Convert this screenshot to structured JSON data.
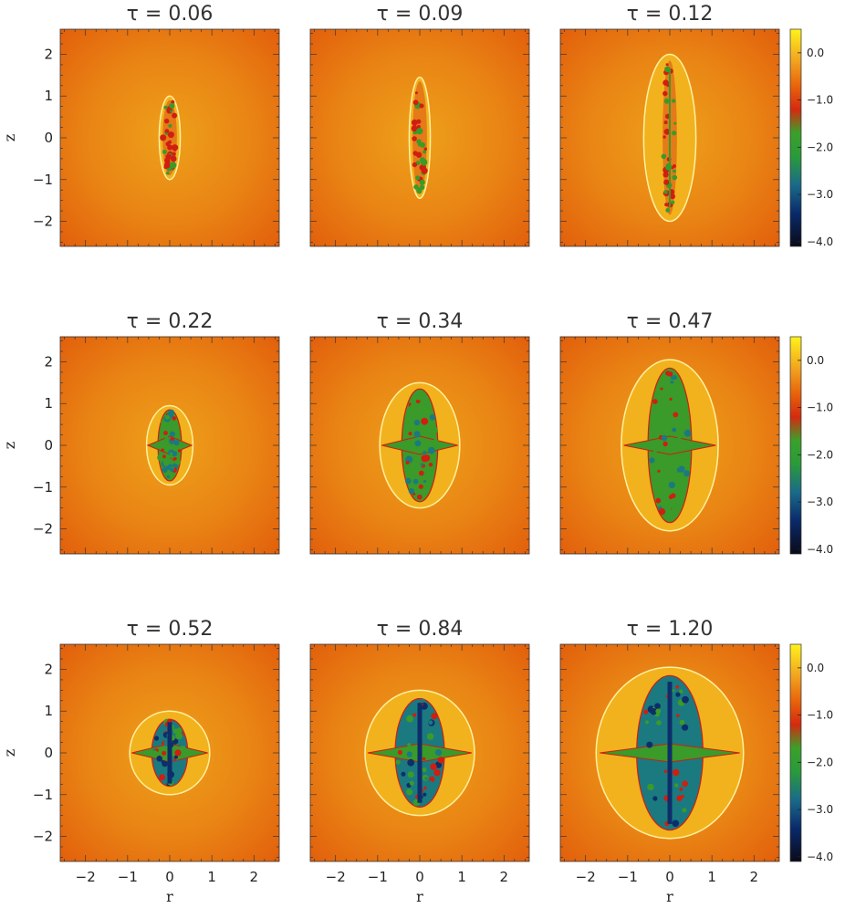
{
  "panels": [
    {
      "title": "τ = 0.06",
      "tau": 0.06,
      "boundary_halfwidth": 0.25,
      "boundary_halfheight": 1.0,
      "core_halfheight": 0.9,
      "stage": "filaments",
      "y_axis_label": "z",
      "x_axis_label": ""
    },
    {
      "title": "τ = 0.09",
      "tau": 0.09,
      "boundary_halfwidth": 0.25,
      "boundary_halfheight": 1.45,
      "core_halfheight": 1.35,
      "stage": "filaments",
      "y_axis_label": "",
      "x_axis_label": ""
    },
    {
      "title": "τ = 0.12",
      "tau": 0.12,
      "boundary_halfwidth": 0.62,
      "boundary_halfheight": 2.0,
      "core_halfheight": 1.85,
      "stage": "filaments",
      "y_axis_label": "",
      "x_axis_label": ""
    },
    {
      "title": "τ = 0.22",
      "tau": 0.22,
      "boundary_halfwidth": 0.55,
      "boundary_halfheight": 0.95,
      "core_halfheight": 0.85,
      "stage": "green",
      "y_axis_label": "z",
      "x_axis_label": ""
    },
    {
      "title": "τ = 0.34",
      "tau": 0.34,
      "boundary_halfwidth": 0.95,
      "boundary_halfheight": 1.5,
      "core_halfheight": 1.35,
      "stage": "green",
      "y_axis_label": "",
      "x_axis_label": ""
    },
    {
      "title": "τ = 0.47",
      "tau": 0.47,
      "boundary_halfwidth": 1.15,
      "boundary_halfheight": 2.05,
      "core_halfheight": 1.85,
      "stage": "green",
      "y_axis_label": "",
      "x_axis_label": ""
    },
    {
      "title": "τ = 0.52",
      "tau": 0.52,
      "boundary_halfwidth": 0.95,
      "boundary_halfheight": 1.0,
      "core_halfheight": 0.8,
      "stage": "blue",
      "y_axis_label": "z",
      "x_axis_label": "r"
    },
    {
      "title": "τ = 0.84",
      "tau": 0.84,
      "boundary_halfwidth": 1.3,
      "boundary_halfheight": 1.5,
      "core_halfheight": 1.3,
      "stage": "blue",
      "y_axis_label": "",
      "x_axis_label": "r"
    },
    {
      "title": "τ = 1.20",
      "tau": 1.2,
      "boundary_halfwidth": 1.75,
      "boundary_halfheight": 2.05,
      "core_halfheight": 1.85,
      "stage": "blue",
      "y_axis_label": "",
      "x_axis_label": "r"
    }
  ],
  "axes": {
    "xlim": [
      -2.6,
      2.6
    ],
    "ylim": [
      -2.6,
      2.6
    ],
    "xticks": [
      -2,
      -1,
      0,
      1,
      2
    ],
    "yticks": [
      -2,
      -1,
      0,
      1,
      2
    ],
    "tick_labels": [
      "−2",
      "−1",
      "0",
      "1",
      "2"
    ]
  },
  "colorbar": {
    "vmin": -4.1,
    "vmax": 0.5,
    "ticks": [
      0.0,
      -1.0,
      -2.0,
      -3.0,
      -4.0
    ],
    "tick_labels": [
      "0.0",
      "−1.0",
      "−2.0",
      "−3.0",
      "−4.0"
    ],
    "stops": [
      {
        "v": -4.1,
        "color": "#0a0a18"
      },
      {
        "v": -3.4,
        "color": "#0a2a6a"
      },
      {
        "v": -2.8,
        "color": "#1a6a8a"
      },
      {
        "v": -2.2,
        "color": "#2a9a3a"
      },
      {
        "v": -1.7,
        "color": "#3aa02a"
      },
      {
        "v": -1.2,
        "color": "#d42a10"
      },
      {
        "v": -0.7,
        "color": "#e8640a"
      },
      {
        "v": -0.2,
        "color": "#f0a020"
      },
      {
        "v": 0.5,
        "color": "#fff21c"
      }
    ]
  },
  "colors": {
    "background_outer": "#e2600c",
    "background_inner": "#eea01a",
    "halo": "#f2b21e",
    "edge": "#fff0a0",
    "red": "#d01e10",
    "green": "#3a9a2a",
    "teal": "#1a7a80",
    "blue": "#0e2e6a"
  }
}
